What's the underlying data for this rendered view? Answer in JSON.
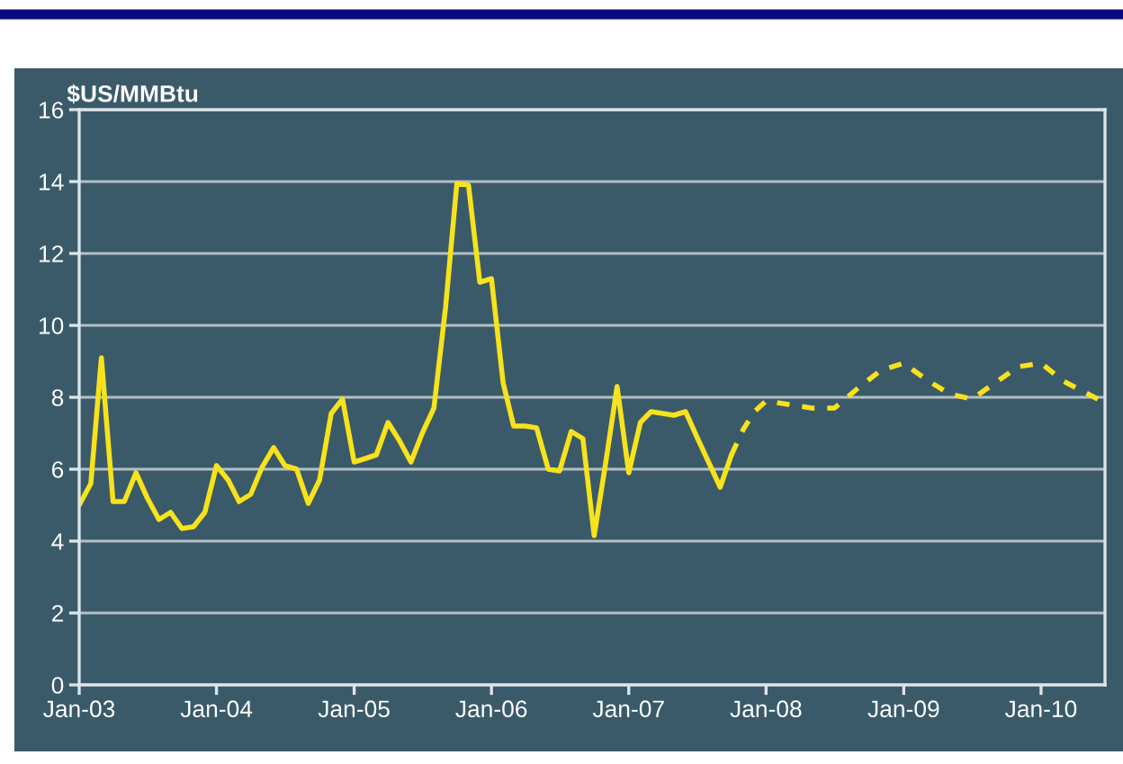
{
  "chart_data": {
    "type": "line",
    "ylabel": "$US/MMBtu",
    "ylim": [
      0,
      16
    ],
    "yticks": [
      0,
      2,
      4,
      6,
      8,
      10,
      12,
      14,
      16
    ],
    "xlim": [
      "2003-01",
      "2010-06-20"
    ],
    "xticks": [
      {
        "value": "2003-01",
        "label": "Jan-03"
      },
      {
        "value": "2004-01",
        "label": "Jan-04"
      },
      {
        "value": "2005-01",
        "label": "Jan-05"
      },
      {
        "value": "2006-01",
        "label": "Jan-06"
      },
      {
        "value": "2007-01",
        "label": "Jan-07"
      },
      {
        "value": "2008-01",
        "label": "Jan-08"
      },
      {
        "value": "2009-01",
        "label": "Jan-09"
      },
      {
        "value": "2010-01",
        "label": "Jan-10"
      }
    ],
    "grid": "y",
    "series": [
      {
        "color": "#f7e21b",
        "line_style": "solid",
        "x": [
          "2003-01",
          "2003-02",
          "2003-03",
          "2003-04",
          "2003-05",
          "2003-06",
          "2003-07",
          "2003-08",
          "2003-09",
          "2003-10",
          "2003-11",
          "2003-12",
          "2004-01",
          "2004-02",
          "2004-03",
          "2004-04",
          "2004-05",
          "2004-06",
          "2004-07",
          "2004-08",
          "2004-09",
          "2004-10",
          "2004-11",
          "2004-12",
          "2005-01",
          "2005-02",
          "2005-03",
          "2005-04",
          "2005-05",
          "2005-06",
          "2005-07",
          "2005-08",
          "2005-09",
          "2005-10",
          "2005-11",
          "2005-12",
          "2006-01",
          "2006-02",
          "2006-03",
          "2006-04",
          "2006-05",
          "2006-06",
          "2006-07",
          "2006-08",
          "2006-09",
          "2006-10",
          "2006-11",
          "2006-12",
          "2007-01",
          "2007-02",
          "2007-03",
          "2007-04",
          "2007-05",
          "2007-06",
          "2007-07",
          "2007-08",
          "2007-09",
          "2007-10"
        ],
        "values": [
          5.0,
          5.6,
          9.1,
          5.1,
          5.1,
          5.9,
          5.2,
          4.6,
          4.8,
          4.35,
          4.4,
          4.8,
          6.1,
          5.7,
          5.1,
          5.3,
          6.05,
          6.6,
          6.1,
          6.0,
          5.05,
          5.7,
          7.55,
          7.95,
          6.2,
          6.3,
          6.4,
          7.3,
          6.8,
          6.2,
          7.0,
          7.7,
          10.5,
          13.95,
          13.9,
          11.2,
          11.3,
          8.4,
          7.2,
          7.2,
          7.15,
          6.0,
          5.95,
          7.05,
          6.85,
          4.15,
          6.2,
          8.3,
          5.9,
          7.3,
          7.6,
          7.55,
          7.5,
          7.6,
          6.9,
          6.2,
          5.5,
          6.4
        ]
      },
      {
        "color": "#f7e21b",
        "line_style": "dashed",
        "x": [
          "2007-10",
          "2007-11",
          "2007-12",
          "2008-01",
          "2008-03",
          "2008-05",
          "2008-07",
          "2008-09",
          "2008-11",
          "2009-01",
          "2009-03",
          "2009-05",
          "2009-07",
          "2009-09",
          "2009-11",
          "2010-01",
          "2010-03",
          "2010-06"
        ],
        "values": [
          6.4,
          7.1,
          7.6,
          7.9,
          7.8,
          7.7,
          7.7,
          8.25,
          8.75,
          8.95,
          8.5,
          8.1,
          7.95,
          8.4,
          8.85,
          8.95,
          8.45,
          7.95
        ]
      }
    ]
  }
}
